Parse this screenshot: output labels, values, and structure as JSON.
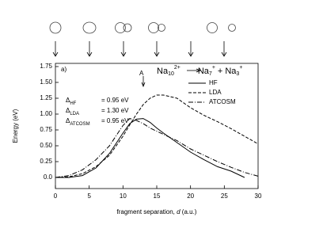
{
  "chart_data": {
    "type": "line",
    "panel_label": "a)",
    "marker_label": "A",
    "reaction": {
      "reactant": "Na",
      "reactant_sub": "10",
      "reactant_sup": "2+",
      "product1": "Na",
      "product1_sub": "7",
      "product1_sup": "+",
      "plus": "+",
      "product2": "Na",
      "product2_sub": "3",
      "product2_sup": "+"
    },
    "barriers": [
      {
        "symbol": "Δ",
        "sub": "HF",
        "text": "= 0.95 eV"
      },
      {
        "symbol": "Δ",
        "sub": "LDA",
        "text": "= 1.30 eV"
      },
      {
        "symbol": "Δ",
        "sub": "ATCOSM",
        "text": "= 0.95 eV"
      }
    ],
    "x_label": {
      "text": "fragment separation, ",
      "var": "d",
      "unit": " (a.u.)"
    },
    "y_label": "Energy (eV)",
    "x": [
      0,
      2,
      4,
      6,
      8,
      10,
      11,
      12,
      13,
      14,
      15,
      16,
      18,
      20,
      22,
      24,
      26,
      28,
      30
    ],
    "series": [
      {
        "name": "HF",
        "color": "#000000",
        "dash": "none",
        "values": [
          0,
          0,
          0.03,
          0.15,
          0.38,
          0.7,
          0.85,
          0.92,
          0.93,
          0.87,
          0.78,
          0.7,
          0.55,
          0.4,
          0.28,
          0.17,
          0.1,
          0.0,
          null
        ]
      },
      {
        "name": "LDA",
        "color": "#000000",
        "dash": "4,2",
        "values": [
          0,
          0.01,
          0.06,
          0.17,
          0.35,
          0.65,
          0.83,
          1.0,
          1.15,
          1.25,
          1.3,
          1.3,
          1.25,
          1.1,
          0.98,
          0.88,
          0.77,
          0.65,
          0.53
        ]
      },
      {
        "name": "ATCOSM",
        "color": "#000000",
        "dash": "6,2,1,2",
        "values": [
          0,
          0.03,
          0.12,
          0.28,
          0.5,
          0.82,
          0.93,
          0.9,
          0.85,
          0.78,
          0.73,
          0.68,
          0.58,
          0.45,
          0.35,
          0.25,
          0.16,
          0.08,
          0.02
        ]
      }
    ],
    "xlim": [
      0,
      30
    ],
    "xticks": [
      0,
      5,
      10,
      15,
      20,
      25,
      30
    ],
    "ylim": [
      -0.175,
      1.8
    ],
    "yticks": [
      {
        "value": 0,
        "label": "0.0"
      },
      0.25,
      {
        "value": 0.5,
        "label": "0.50"
      },
      0.75,
      {
        "value": 1,
        "label": "1.00"
      },
      1.25,
      {
        "value": 1.5,
        "label": "1.50"
      },
      1.75
    ],
    "grid": false,
    "legend": "upper right"
  }
}
